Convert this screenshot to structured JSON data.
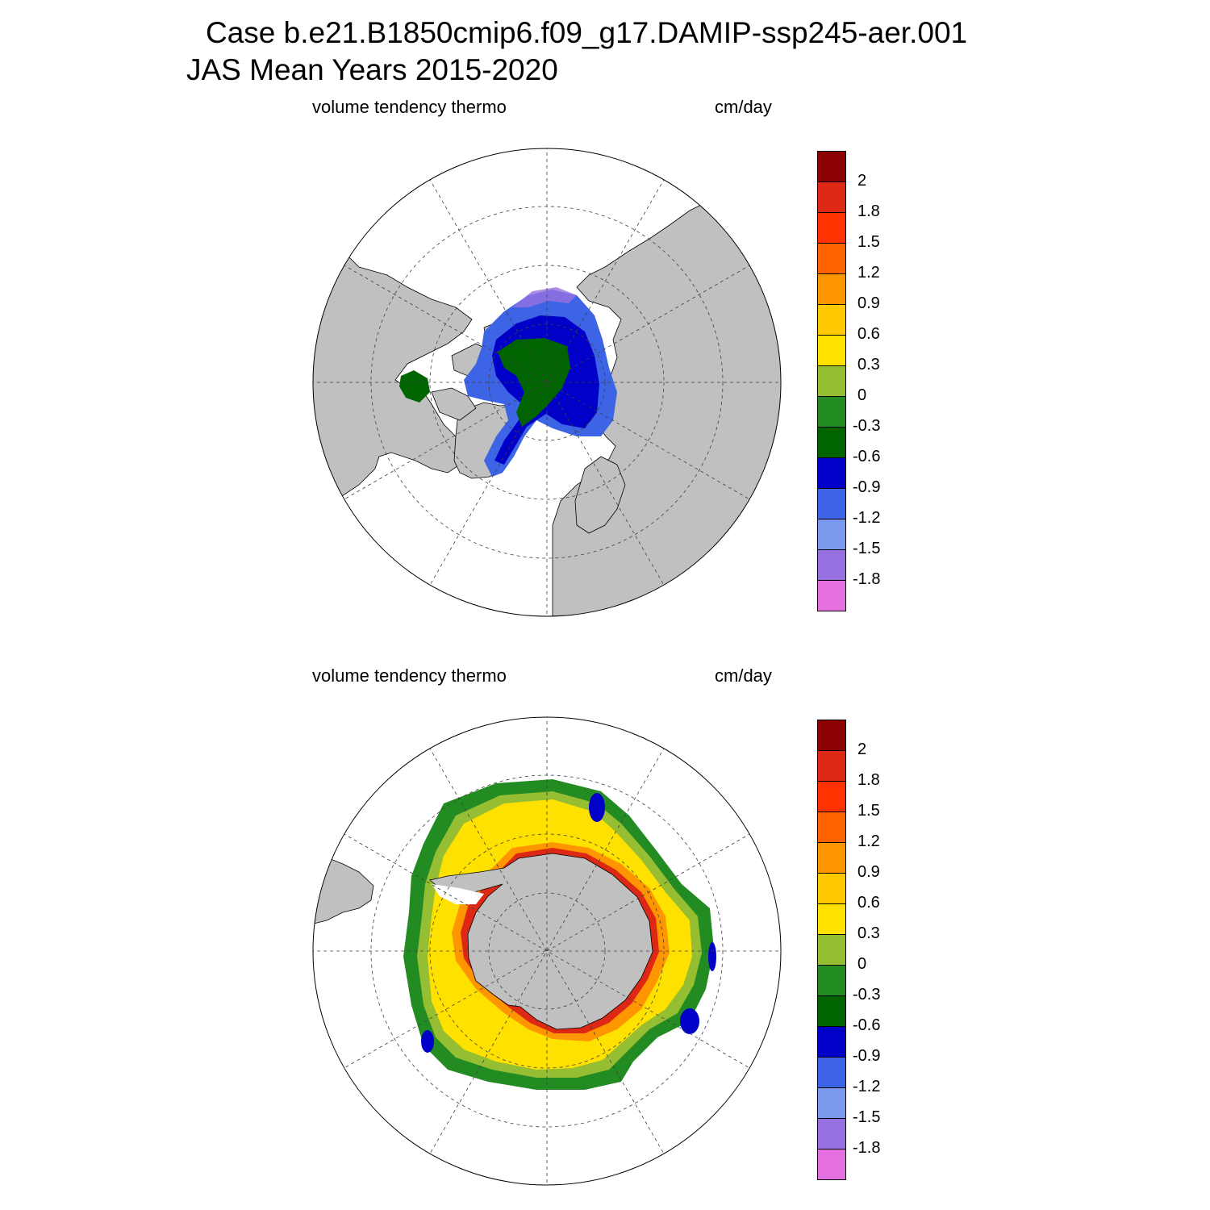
{
  "title": {
    "line1": "Case b.e21.B1850cmip6.f09_g17.DAMIP-ssp245-aer.001",
    "line2": "JAS Mean   Years 2015-2020"
  },
  "panels": [
    {
      "id": "north",
      "variable_label": "volume tendency thermo",
      "units_label": "cm/day",
      "hemisphere": "north"
    },
    {
      "id": "south",
      "variable_label": "volume tendency thermo",
      "units_label": "cm/day",
      "hemisphere": "south"
    }
  ],
  "colorbar": {
    "colors": [
      "#e470e0",
      "#9670e0",
      "#7a9af0",
      "#3c64e4",
      "#0000c8",
      "#006400",
      "#228b22",
      "#96be32",
      "#ffe100",
      "#ffc800",
      "#ff9600",
      "#ff6400",
      "#ff3200",
      "#dc2814",
      "#8b0000"
    ],
    "labels": [
      "-1.8",
      "-1.5",
      "-1.2",
      "-0.9",
      "-0.6",
      "-0.3",
      "0",
      "0.3",
      "0.6",
      "0.9",
      "1.2",
      "1.5",
      "1.8",
      "2"
    ]
  },
  "colors": {
    "land": "#c0c0c0",
    "ocean": "#ffffff",
    "grid": "#404040"
  }
}
